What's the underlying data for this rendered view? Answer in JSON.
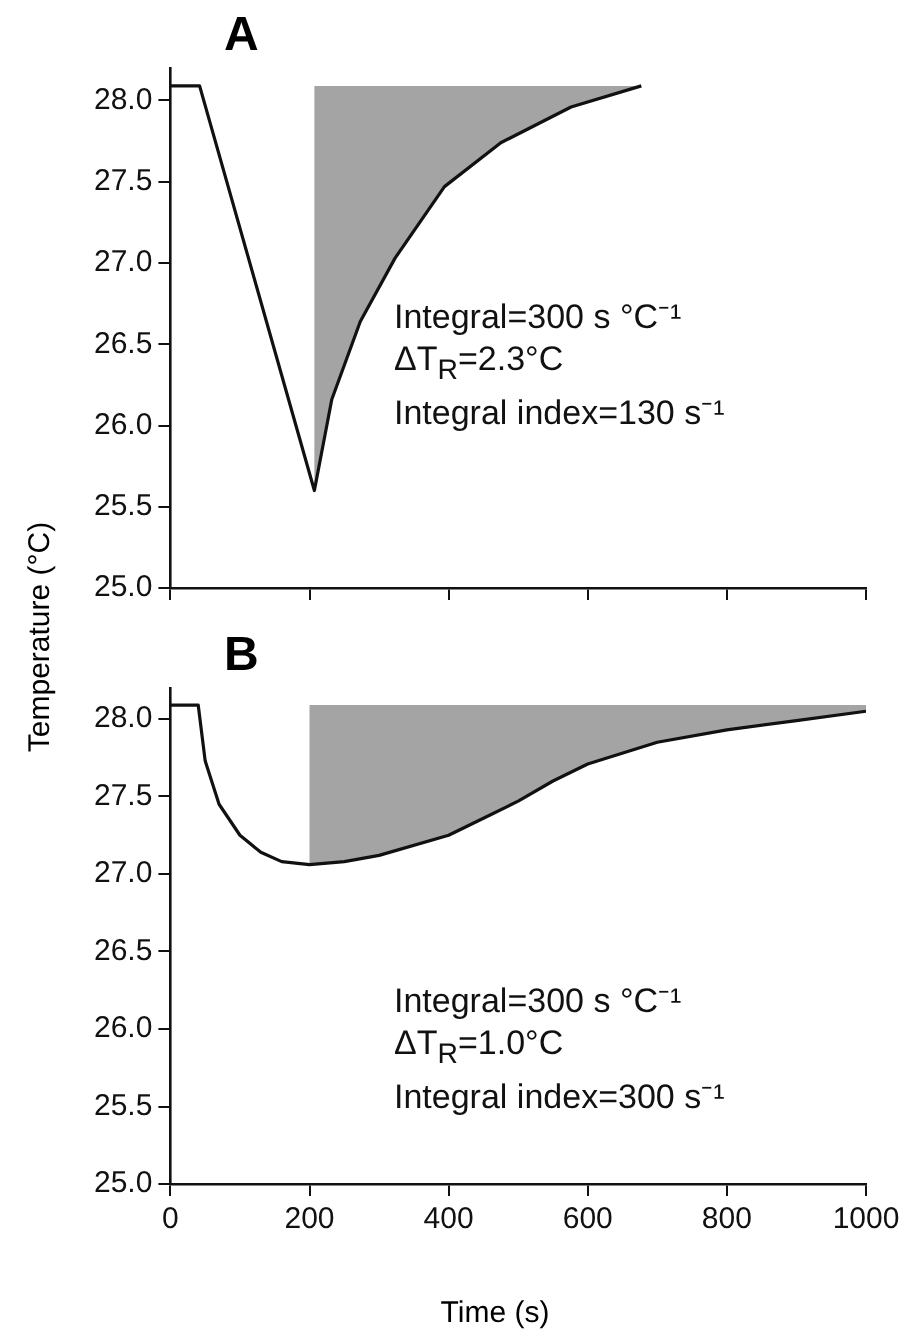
{
  "chart_data": [
    {
      "type": "line",
      "title": "A",
      "ylabel": "Temperature (°C)",
      "x": [
        0,
        42,
        207,
        232,
        273,
        323,
        394,
        475,
        576,
        677
      ],
      "series": [
        {
          "color": "#111111",
          "values": [
            28.09,
            28.09,
            25.6,
            26.16,
            26.64,
            27.03,
            27.47,
            27.74,
            27.96,
            28.09
          ],
          "lower": [
            null,
            null,
            25.6,
            26.16,
            26.64,
            27.03,
            27.47,
            27.74,
            27.96,
            28.09
          ],
          "upper": [
            null,
            null,
            28.09,
            28.09,
            28.09,
            28.09,
            28.09,
            28.09,
            28.09,
            28.09
          ]
        }
      ],
      "xlim": [
        0,
        1000
      ],
      "xticks": [
        0,
        200,
        400,
        600,
        800,
        1000
      ],
      "ylim": [
        25,
        28.2
      ],
      "yticks": [
        {
          "value": 25,
          "label": "25.0"
        },
        {
          "value": 25.5,
          "label": "25.5"
        },
        {
          "value": 26,
          "label": "26.0"
        },
        {
          "value": 26.5,
          "label": "26.5"
        },
        {
          "value": 27,
          "label": "27.0"
        },
        {
          "value": 27.5,
          "label": "27.5"
        },
        {
          "value": 28,
          "label": "28.0"
        }
      ],
      "tick_labels": "y",
      "grid": false,
      "legend": false,
      "marker": "none",
      "annotations": [
        "Integral=300 s °C⁻¹",
        "ΔT$_{R}$=2.3°C",
        "Integral index=130 s⁻¹"
      ]
    },
    {
      "type": "line",
      "title": "B",
      "xlabel": "Time (s)",
      "x": [
        0,
        40,
        50,
        70,
        100,
        130,
        160,
        200,
        250,
        300,
        400,
        450,
        500,
        550,
        600,
        700,
        800,
        900,
        1000
      ],
      "series": [
        {
          "color": "#111111",
          "values": [
            28.09,
            28.09,
            27.73,
            27.45,
            27.25,
            27.14,
            27.08,
            27.06,
            27.08,
            27.12,
            27.25,
            27.36,
            27.47,
            27.6,
            27.71,
            27.85,
            27.93,
            27.99,
            28.05
          ],
          "lower": [
            null,
            null,
            null,
            null,
            null,
            null,
            null,
            27.06,
            27.08,
            27.12,
            27.25,
            27.36,
            27.47,
            27.6,
            27.71,
            27.85,
            27.93,
            27.99,
            28.05
          ],
          "upper": [
            null,
            null,
            null,
            null,
            null,
            null,
            null,
            28.09,
            28.09,
            28.09,
            28.09,
            28.09,
            28.09,
            28.09,
            28.09,
            28.09,
            28.09,
            28.09,
            28.09
          ]
        }
      ],
      "xlim": [
        0,
        1000
      ],
      "xticks": [
        0,
        200,
        400,
        600,
        800,
        1000
      ],
      "ylim": [
        25,
        28.2
      ],
      "yticks": [
        {
          "value": 25,
          "label": "25.0"
        },
        {
          "value": 25.5,
          "label": "25.5"
        },
        {
          "value": 26,
          "label": "26.0"
        },
        {
          "value": 26.5,
          "label": "26.5"
        },
        {
          "value": 27,
          "label": "27.0"
        },
        {
          "value": 27.5,
          "label": "27.5"
        },
        {
          "value": 28,
          "label": "28.0"
        }
      ],
      "grid": false,
      "legend": false,
      "marker": "none",
      "annotations": [
        "Integral=300 s °C⁻¹",
        "ΔT$_{R}$=1.0°C",
        "Integral index=300 s⁻¹"
      ]
    }
  ]
}
